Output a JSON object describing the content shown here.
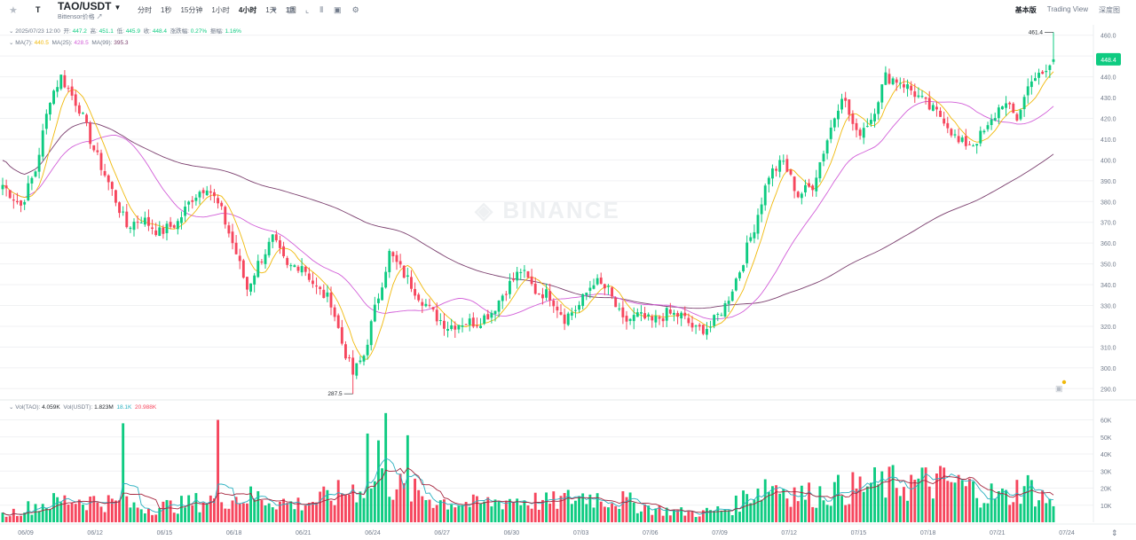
{
  "header": {
    "symbol": "TAO/USDT",
    "subname": "Bittensor价格",
    "intervals": [
      "分时",
      "1秒",
      "15分钟",
      "1小时",
      "4小时",
      "1天",
      "1周"
    ],
    "active_interval": "4小时",
    "views": [
      "基本版",
      "Trading View",
      "深度图"
    ],
    "active_view": "基本版"
  },
  "ohlc": {
    "datetime": "2025/07/23 12:00",
    "open_label": "开:",
    "open": "447.2",
    "high_label": "高:",
    "high": "451.1",
    "low_label": "低:",
    "low": "445.9",
    "close_label": "收:",
    "close": "448.4",
    "change_label": "涨跌幅:",
    "change": "0.27%",
    "amplitude_label": "振幅:",
    "amplitude": "1.16%"
  },
  "ma": {
    "ma7_label": "MA(7):",
    "ma7": "440.5",
    "ma25_label": "MA(25):",
    "ma25": "428.5",
    "ma99_label": "MA(99):",
    "ma99": "395.3"
  },
  "vol": {
    "tao_label": "Vol(TAO):",
    "tao": "4.059K",
    "usdt_label": "Vol(USDT):",
    "usdt": "1.823M",
    "v1": "18.1K",
    "v2": "20.988K"
  },
  "watermark": "BINANCE",
  "colors": {
    "up": "#0ecb81",
    "down": "#f6465d",
    "ma7": "#f0b90b",
    "ma25": "#d25ed8",
    "ma99": "#7b3f6e",
    "grid": "#f0f1f3"
  },
  "chart_data": {
    "type": "candlestick",
    "y_ticks": [
      "460.0",
      "450.0",
      "440.0",
      "430.0",
      "420.0",
      "410.0",
      "400.0",
      "390.0",
      "380.0",
      "370.0",
      "360.0",
      "350.0",
      "340.0",
      "330.0",
      "320.0",
      "310.0",
      "300.0",
      "290.0"
    ],
    "ylim": [
      285,
      465
    ],
    "vol_ticks": [
      "60K",
      "50K",
      "40K",
      "30K",
      "20K",
      "10K"
    ],
    "vol_ylim": [
      0,
      66
    ],
    "x_labels": [
      "06/09",
      "06/12",
      "06/15",
      "06/18",
      "06/21",
      "06/24",
      "06/27",
      "06/30",
      "07/03",
      "07/06",
      "07/09",
      "07/12",
      "07/15",
      "07/18",
      "07/21",
      "07/24"
    ],
    "last_price": "448.4",
    "high_annotation": "461.4",
    "low_annotation": "287.5",
    "anchors": [
      [
        0,
        388
      ],
      [
        5,
        378
      ],
      [
        9,
        395
      ],
      [
        13,
        430
      ],
      [
        16,
        440
      ],
      [
        21,
        425
      ],
      [
        25,
        405
      ],
      [
        30,
        385
      ],
      [
        34,
        368
      ],
      [
        38,
        372
      ],
      [
        43,
        365
      ],
      [
        48,
        370
      ],
      [
        52,
        382
      ],
      [
        56,
        388
      ],
      [
        60,
        375
      ],
      [
        64,
        355
      ],
      [
        67,
        338
      ],
      [
        70,
        350
      ],
      [
        74,
        362
      ],
      [
        78,
        348
      ],
      [
        82,
        350
      ],
      [
        86,
        338
      ],
      [
        90,
        332
      ],
      [
        93,
        312
      ],
      [
        96,
        297
      ],
      [
        99,
        306
      ],
      [
        102,
        328
      ],
      [
        106,
        355
      ],
      [
        110,
        345
      ],
      [
        114,
        335
      ],
      [
        118,
        326
      ],
      [
        122,
        320
      ],
      [
        126,
        322
      ],
      [
        130,
        322
      ],
      [
        134,
        327
      ],
      [
        138,
        338
      ],
      [
        142,
        347
      ],
      [
        146,
        337
      ],
      [
        150,
        335
      ],
      [
        154,
        324
      ],
      [
        158,
        330
      ],
      [
        162,
        342
      ],
      [
        166,
        337
      ],
      [
        170,
        322
      ],
      [
        174,
        325
      ],
      [
        178,
        322
      ],
      [
        182,
        326
      ],
      [
        186,
        325
      ],
      [
        190,
        318
      ],
      [
        194,
        320
      ],
      [
        198,
        330
      ],
      [
        202,
        347
      ],
      [
        206,
        368
      ],
      [
        210,
        393
      ],
      [
        214,
        399
      ],
      [
        218,
        383
      ],
      [
        222,
        388
      ],
      [
        226,
        410
      ],
      [
        230,
        432
      ],
      [
        234,
        412
      ],
      [
        238,
        420
      ],
      [
        242,
        440
      ],
      [
        246,
        438
      ],
      [
        250,
        432
      ],
      [
        254,
        425
      ],
      [
        258,
        420
      ],
      [
        262,
        408
      ],
      [
        266,
        408
      ],
      [
        270,
        415
      ],
      [
        274,
        428
      ],
      [
        278,
        420
      ],
      [
        282,
        440
      ],
      [
        285,
        440
      ],
      [
        288,
        448
      ]
    ],
    "vol_anchors": [
      [
        0,
        4
      ],
      [
        10,
        10
      ],
      [
        20,
        13
      ],
      [
        30,
        11
      ],
      [
        40,
        8
      ],
      [
        50,
        10
      ],
      [
        60,
        14
      ],
      [
        70,
        14
      ],
      [
        80,
        10
      ],
      [
        90,
        14
      ],
      [
        100,
        22
      ],
      [
        105,
        23
      ],
      [
        110,
        18
      ],
      [
        120,
        12
      ],
      [
        130,
        10
      ],
      [
        140,
        13
      ],
      [
        150,
        11
      ],
      [
        160,
        15
      ],
      [
        170,
        12
      ],
      [
        180,
        7
      ],
      [
        190,
        5
      ],
      [
        200,
        8
      ],
      [
        205,
        17
      ],
      [
        210,
        22
      ],
      [
        220,
        15
      ],
      [
        230,
        18
      ],
      [
        240,
        21
      ],
      [
        250,
        22
      ],
      [
        260,
        22
      ],
      [
        270,
        16
      ],
      [
        275,
        14
      ],
      [
        280,
        21
      ],
      [
        288,
        10
      ]
    ],
    "vol_spikes": [
      [
        33,
        58
      ],
      [
        59,
        60
      ],
      [
        100,
        52
      ],
      [
        103,
        48
      ],
      [
        105,
        64
      ],
      [
        111,
        51
      ]
    ]
  }
}
